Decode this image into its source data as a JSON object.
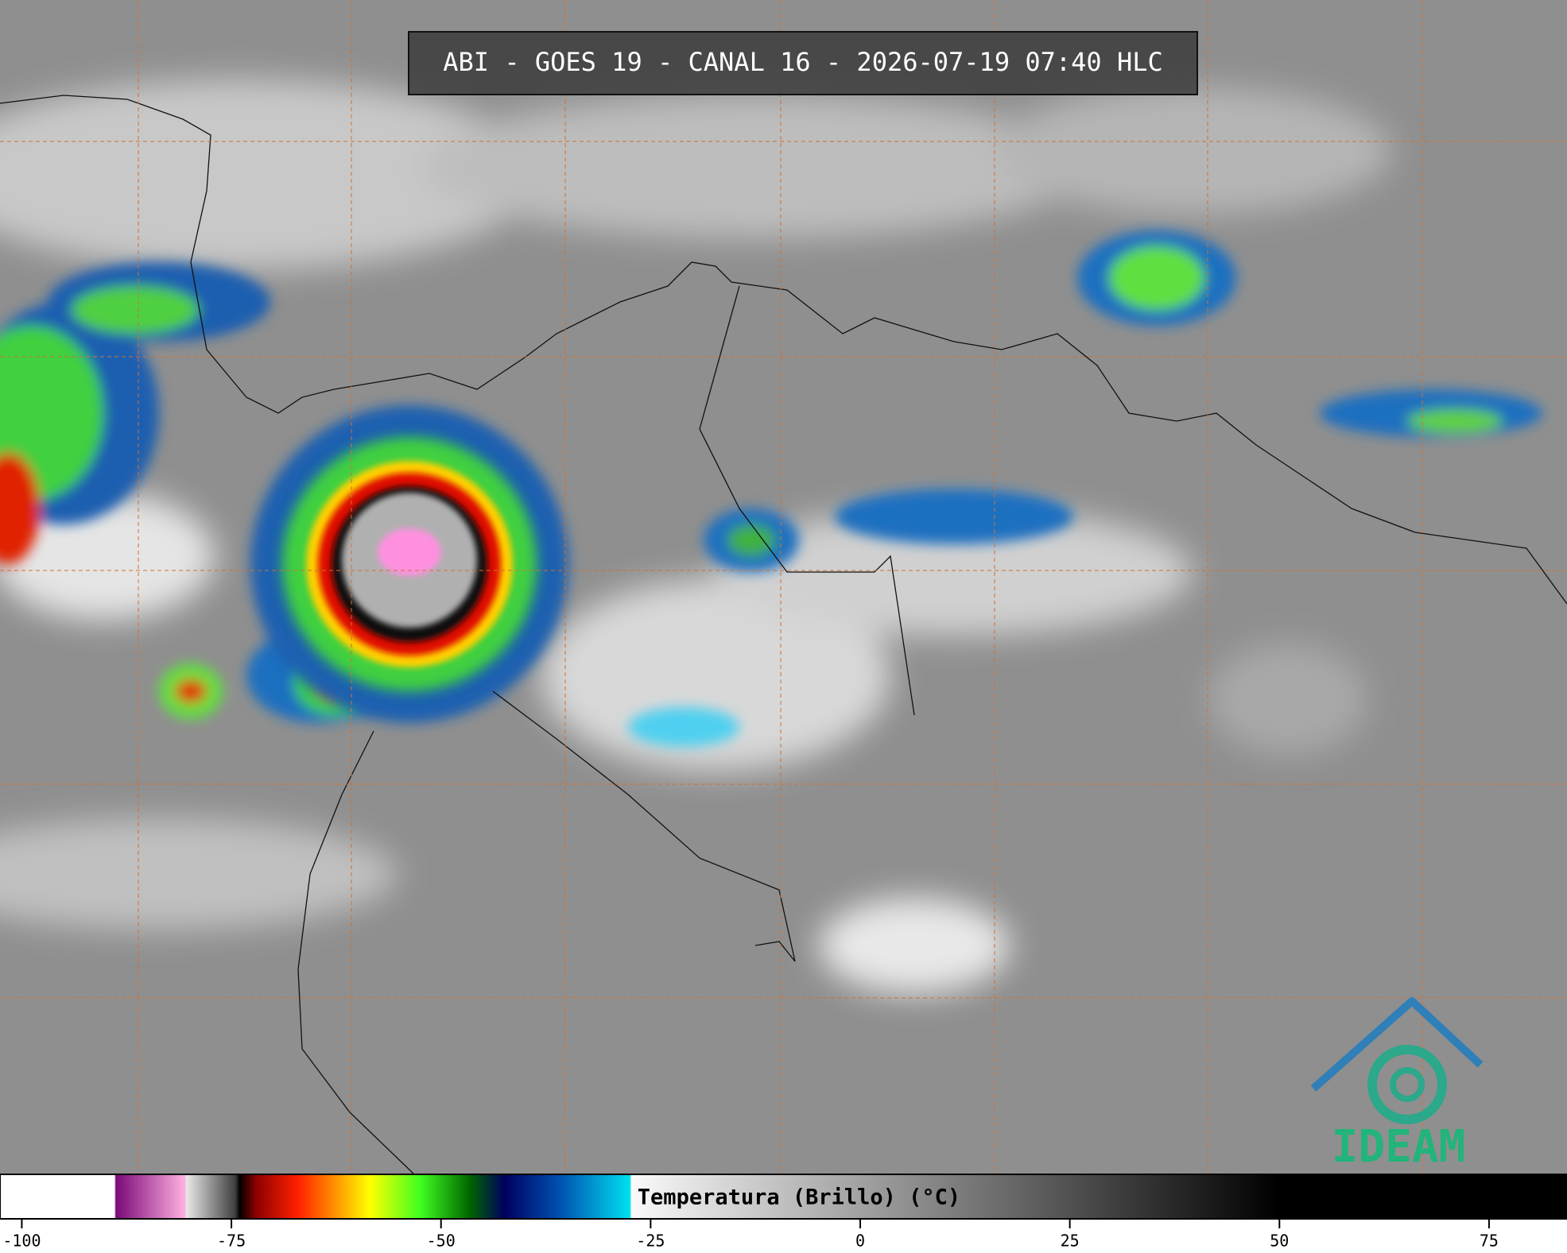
{
  "header": {
    "title": "ABI - GOES 19 - CANAL 16 - 2026-07-19 07:40 HLC"
  },
  "logo": {
    "text": "IDEAM"
  },
  "colorbar": {
    "label": "Temperatura (Brillo) (°C)",
    "lim": [
      -102.6,
      84.3
    ],
    "ticks": [
      -100,
      -75,
      -50,
      -25,
      0,
      25,
      50,
      75
    ]
  }
}
